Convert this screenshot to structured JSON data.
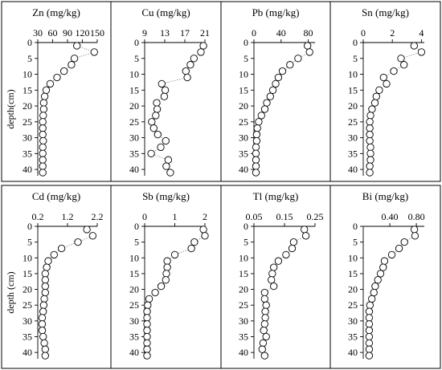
{
  "chart_data": [
    {
      "type": "scatter",
      "title": "Zn (mg/kg)",
      "ylabel": "depth(cm)",
      "xlim": [
        30,
        150
      ],
      "xticks": [
        30,
        60,
        90,
        120,
        150
      ],
      "xtick_labels": [
        "30",
        "60",
        "90",
        "120",
        "150"
      ],
      "ylim": [
        0,
        42
      ],
      "yticks": [
        0,
        5,
        10,
        15,
        20,
        25,
        30,
        35,
        40
      ],
      "ytick_labels": [
        "0",
        "5",
        "10",
        "15",
        "20",
        "25",
        "30",
        "35",
        "40"
      ],
      "connect_break_after": -1,
      "points": [
        [
          109,
          1
        ],
        [
          144,
          3
        ],
        [
          104,
          5
        ],
        [
          98,
          7
        ],
        [
          83,
          9
        ],
        [
          69,
          11
        ],
        [
          55,
          13
        ],
        [
          47,
          15
        ],
        [
          44,
          17
        ],
        [
          42,
          19
        ],
        [
          42,
          21
        ],
        [
          41,
          23
        ],
        [
          40,
          25
        ],
        [
          40,
          27
        ],
        [
          40,
          29
        ],
        [
          41,
          31
        ],
        [
          40,
          33
        ],
        [
          40,
          35
        ],
        [
          40,
          37
        ],
        [
          40,
          39
        ],
        [
          40,
          41
        ]
      ]
    },
    {
      "type": "scatter",
      "title": "Cu (mg/kg)",
      "xlim": [
        9,
        21
      ],
      "xticks": [
        9,
        13,
        17,
        21
      ],
      "xtick_labels": [
        "9",
        "13",
        "17",
        "21"
      ],
      "ylim": [
        0,
        42
      ],
      "yticks": [
        0,
        5,
        10,
        15,
        20,
        25,
        30,
        35,
        40
      ],
      "ytick_labels": [
        "0",
        "5",
        "10",
        "15",
        "20",
        "25",
        "30",
        "35",
        "40"
      ],
      "connect_break_after": 5,
      "points": [
        [
          20.7,
          1
        ],
        [
          20.2,
          3
        ],
        [
          18.8,
          5
        ],
        [
          18.1,
          7
        ],
        [
          17.2,
          9
        ],
        [
          17.5,
          11
        ],
        [
          12.4,
          13
        ],
        [
          13.1,
          15
        ],
        [
          12.9,
          17
        ],
        [
          11.4,
          19
        ],
        [
          11.5,
          21
        ],
        [
          11.2,
          23
        ],
        [
          10.4,
          25
        ],
        [
          10.8,
          27
        ],
        [
          11.6,
          29
        ],
        [
          13.2,
          31
        ],
        [
          12.2,
          33
        ],
        [
          10.3,
          35
        ],
        [
          13.7,
          37
        ],
        [
          13.3,
          39
        ],
        [
          14.1,
          41
        ]
      ]
    },
    {
      "type": "scatter",
      "title": "Pb (mg/kg)",
      "xlim": [
        0,
        90
      ],
      "xticks": [
        0,
        40,
        80
      ],
      "xtick_labels": [
        "0",
        "40",
        "80"
      ],
      "ylim": [
        0,
        42
      ],
      "yticks": [
        0,
        5,
        10,
        15,
        20,
        25,
        30,
        35,
        40
      ],
      "ytick_labels": [
        "0",
        "5",
        "10",
        "15",
        "20",
        "25",
        "30",
        "35",
        "40"
      ],
      "connect_break_after": -1,
      "points": [
        [
          79,
          1
        ],
        [
          82,
          3
        ],
        [
          65,
          5
        ],
        [
          53,
          7
        ],
        [
          42,
          9
        ],
        [
          36,
          11
        ],
        [
          32,
          13
        ],
        [
          28,
          15
        ],
        [
          24,
          17
        ],
        [
          19,
          19
        ],
        [
          16,
          21
        ],
        [
          11,
          23
        ],
        [
          7,
          25
        ],
        [
          5,
          27
        ],
        [
          4,
          29
        ],
        [
          4,
          31
        ],
        [
          3,
          33
        ],
        [
          3,
          35
        ],
        [
          3,
          37
        ],
        [
          3,
          39
        ],
        [
          3,
          41
        ]
      ]
    },
    {
      "type": "scatter",
      "title": "Sn (mg/kg)",
      "xlim": [
        0,
        4.2
      ],
      "xticks": [
        0,
        2,
        4
      ],
      "xtick_labels": [
        "0",
        "2",
        "4"
      ],
      "ylim": [
        0,
        42
      ],
      "yticks": [
        0,
        5,
        10,
        15,
        20,
        25,
        30,
        35,
        40
      ],
      "ytick_labels": [
        "0",
        "5",
        "10",
        "15",
        "20",
        "25",
        "30",
        "35",
        "40"
      ],
      "connect_break_after": -1,
      "points": [
        [
          3.5,
          1
        ],
        [
          4.0,
          3
        ],
        [
          2.6,
          5
        ],
        [
          2.8,
          7
        ],
        [
          2.1,
          9
        ],
        [
          1.4,
          11
        ],
        [
          1.6,
          13
        ],
        [
          1.1,
          15
        ],
        [
          0.9,
          17
        ],
        [
          0.8,
          19
        ],
        [
          0.6,
          21
        ],
        [
          0.5,
          23
        ],
        [
          0.45,
          25
        ],
        [
          0.45,
          27
        ],
        [
          0.45,
          29
        ],
        [
          0.45,
          31
        ],
        [
          0.5,
          33
        ],
        [
          0.5,
          35
        ],
        [
          0.5,
          37
        ],
        [
          0.45,
          39
        ],
        [
          0.45,
          41
        ]
      ]
    },
    {
      "type": "scatter",
      "title": "Cd (mg/kg)",
      "ylabel": "depth (cm)",
      "xlim": [
        0.2,
        2.2
      ],
      "xticks": [
        0.2,
        1.2,
        2.2
      ],
      "xtick_labels": [
        "0.2",
        "1.2",
        "2.2"
      ],
      "ylim": [
        0,
        42
      ],
      "yticks": [
        0,
        5,
        10,
        15,
        20,
        25,
        30,
        35,
        40
      ],
      "ytick_labels": [
        "0",
        "5",
        "10",
        "15",
        "20",
        "25",
        "30",
        "35",
        "40"
      ],
      "connect_break_after": -1,
      "points": [
        [
          1.85,
          1
        ],
        [
          2.05,
          3
        ],
        [
          1.55,
          5
        ],
        [
          1.0,
          7
        ],
        [
          0.75,
          9
        ],
        [
          0.55,
          11
        ],
        [
          0.5,
          13
        ],
        [
          0.45,
          15
        ],
        [
          0.45,
          17
        ],
        [
          0.45,
          19
        ],
        [
          0.45,
          21
        ],
        [
          0.42,
          23
        ],
        [
          0.4,
          25
        ],
        [
          0.38,
          27
        ],
        [
          0.35,
          29
        ],
        [
          0.35,
          31
        ],
        [
          0.35,
          33
        ],
        [
          0.38,
          35
        ],
        [
          0.42,
          37
        ],
        [
          0.45,
          39
        ],
        [
          0.45,
          41
        ]
      ]
    },
    {
      "type": "scatter",
      "title": "Sb (mg/kg)",
      "xlim": [
        0,
        2
      ],
      "xticks": [
        0,
        1,
        2
      ],
      "xtick_labels": [
        "0",
        "1",
        "2"
      ],
      "ylim": [
        0,
        42
      ],
      "yticks": [
        0,
        5,
        10,
        15,
        20,
        25,
        30,
        35,
        40
      ],
      "ytick_labels": [
        "0",
        "5",
        "10",
        "15",
        "20",
        "25",
        "30",
        "35",
        "40"
      ],
      "connect_break_after": -1,
      "points": [
        [
          1.95,
          1
        ],
        [
          2.0,
          3
        ],
        [
          1.65,
          5
        ],
        [
          1.55,
          7
        ],
        [
          1.0,
          9
        ],
        [
          0.75,
          11
        ],
        [
          0.75,
          13
        ],
        [
          0.72,
          15
        ],
        [
          0.7,
          17
        ],
        [
          0.55,
          19
        ],
        [
          0.35,
          21
        ],
        [
          0.15,
          23
        ],
        [
          0.1,
          25
        ],
        [
          0.08,
          27
        ],
        [
          0.08,
          29
        ],
        [
          0.08,
          31
        ],
        [
          0.08,
          33
        ],
        [
          0.08,
          35
        ],
        [
          0.08,
          37
        ],
        [
          0.08,
          39
        ],
        [
          0.08,
          41
        ]
      ]
    },
    {
      "type": "scatter",
      "title": "Tl (mg/kg)",
      "xlim": [
        0.05,
        0.25
      ],
      "xticks": [
        0.05,
        0.15,
        0.25
      ],
      "xtick_labels": [
        "0.05",
        "0.15",
        "0.25"
      ],
      "ylim": [
        0,
        42
      ],
      "yticks": [
        0,
        5,
        10,
        15,
        20,
        25,
        30,
        35,
        40
      ],
      "ytick_labels": [
        "0",
        "5",
        "10",
        "15",
        "20",
        "25",
        "30",
        "35",
        "40"
      ],
      "connect_break_after": -1,
      "points": [
        [
          0.215,
          1
        ],
        [
          0.22,
          3
        ],
        [
          0.18,
          5
        ],
        [
          0.175,
          7
        ],
        [
          0.155,
          9
        ],
        [
          0.13,
          11
        ],
        [
          0.115,
          13
        ],
        [
          0.11,
          15
        ],
        [
          0.107,
          17
        ],
        [
          0.115,
          19
        ],
        [
          0.085,
          21
        ],
        [
          0.085,
          23
        ],
        [
          0.09,
          25
        ],
        [
          0.087,
          27
        ],
        [
          0.087,
          29
        ],
        [
          0.085,
          31
        ],
        [
          0.082,
          33
        ],
        [
          0.09,
          35
        ],
        [
          0.08,
          37
        ],
        [
          0.077,
          39
        ],
        [
          0.085,
          41
        ]
      ]
    },
    {
      "type": "scatter",
      "title": "Bi (mg/kg)",
      "xlim": [
        0,
        0.92
      ],
      "xticks": [
        0.4,
        0.8
      ],
      "xtick_labels": [
        "0.40",
        "0.80"
      ],
      "ylim": [
        0,
        42
      ],
      "yticks": [
        0,
        5,
        10,
        15,
        20,
        25,
        30,
        35,
        40
      ],
      "ytick_labels": [
        "0",
        "5",
        "10",
        "15",
        "20",
        "25",
        "30",
        "35",
        "40"
      ],
      "connect_break_after": -1,
      "points": [
        [
          0.77,
          1
        ],
        [
          0.78,
          3
        ],
        [
          0.62,
          5
        ],
        [
          0.54,
          7
        ],
        [
          0.43,
          9
        ],
        [
          0.32,
          11
        ],
        [
          0.3,
          13
        ],
        [
          0.26,
          15
        ],
        [
          0.22,
          17
        ],
        [
          0.18,
          19
        ],
        [
          0.16,
          21
        ],
        [
          0.13,
          23
        ],
        [
          0.1,
          25
        ],
        [
          0.09,
          27
        ],
        [
          0.09,
          29
        ],
        [
          0.09,
          31
        ],
        [
          0.09,
          33
        ],
        [
          0.09,
          35
        ],
        [
          0.09,
          37
        ],
        [
          0.09,
          39
        ],
        [
          0.09,
          41
        ]
      ]
    }
  ]
}
